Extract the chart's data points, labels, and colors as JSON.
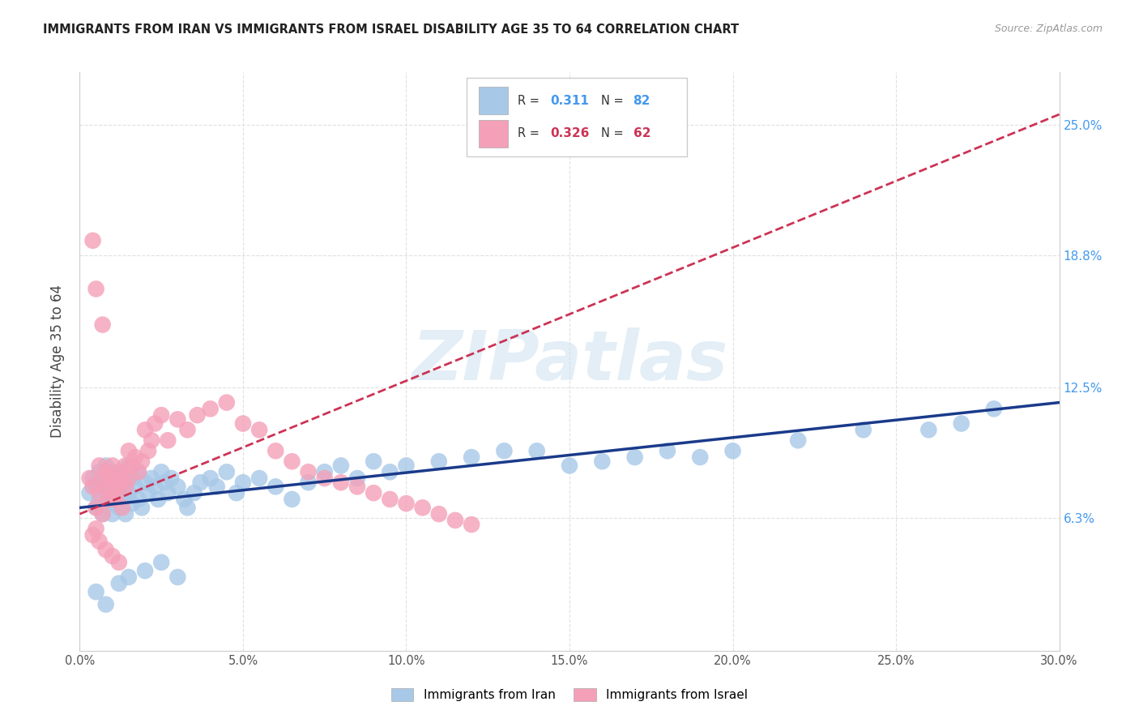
{
  "title": "IMMIGRANTS FROM IRAN VS IMMIGRANTS FROM ISRAEL DISABILITY AGE 35 TO 64 CORRELATION CHART",
  "source": "Source: ZipAtlas.com",
  "ylabel": "Disability Age 35 to 64",
  "ytick_labels": [
    "6.3%",
    "12.5%",
    "18.8%",
    "25.0%"
  ],
  "ytick_values": [
    0.063,
    0.125,
    0.188,
    0.25
  ],
  "xlim": [
    0.0,
    0.3
  ],
  "ylim": [
    0.0,
    0.275
  ],
  "iran_R": "0.311",
  "iran_N": "82",
  "israel_R": "0.326",
  "israel_N": "62",
  "iran_color": "#a8c8e8",
  "israel_color": "#f4a0b8",
  "iran_line_color": "#1a3a8a",
  "israel_line_color": "#cc3355",
  "israel_line_style": "--",
  "iran_line_style": "-",
  "background_color": "#ffffff",
  "grid_color": "#e0e0e0",
  "watermark": "ZIPatlas",
  "legend_iran": "Immigrants from Iran",
  "legend_israel": "Immigrants from Israel",
  "iran_x": [
    0.003,
    0.004,
    0.005,
    0.005,
    0.006,
    0.006,
    0.007,
    0.007,
    0.008,
    0.008,
    0.009,
    0.009,
    0.01,
    0.01,
    0.01,
    0.011,
    0.011,
    0.012,
    0.012,
    0.013,
    0.013,
    0.014,
    0.014,
    0.015,
    0.015,
    0.016,
    0.016,
    0.017,
    0.018,
    0.018,
    0.019,
    0.02,
    0.021,
    0.022,
    0.023,
    0.024,
    0.025,
    0.026,
    0.027,
    0.028,
    0.03,
    0.032,
    0.033,
    0.035,
    0.037,
    0.04,
    0.042,
    0.045,
    0.048,
    0.05,
    0.055,
    0.06,
    0.065,
    0.07,
    0.075,
    0.08,
    0.085,
    0.09,
    0.095,
    0.1,
    0.11,
    0.12,
    0.13,
    0.14,
    0.15,
    0.16,
    0.17,
    0.18,
    0.19,
    0.2,
    0.22,
    0.24,
    0.26,
    0.27,
    0.28,
    0.005,
    0.008,
    0.012,
    0.015,
    0.02,
    0.025,
    0.03
  ],
  "iran_y": [
    0.075,
    0.082,
    0.068,
    0.078,
    0.085,
    0.072,
    0.08,
    0.065,
    0.075,
    0.088,
    0.07,
    0.078,
    0.085,
    0.072,
    0.065,
    0.08,
    0.075,
    0.082,
    0.068,
    0.078,
    0.072,
    0.08,
    0.065,
    0.088,
    0.075,
    0.082,
    0.07,
    0.078,
    0.072,
    0.085,
    0.068,
    0.08,
    0.075,
    0.082,
    0.078,
    0.072,
    0.085,
    0.08,
    0.075,
    0.082,
    0.078,
    0.072,
    0.068,
    0.075,
    0.08,
    0.082,
    0.078,
    0.085,
    0.075,
    0.08,
    0.082,
    0.078,
    0.072,
    0.08,
    0.085,
    0.088,
    0.082,
    0.09,
    0.085,
    0.088,
    0.09,
    0.092,
    0.095,
    0.095,
    0.088,
    0.09,
    0.092,
    0.095,
    0.092,
    0.095,
    0.1,
    0.105,
    0.105,
    0.108,
    0.115,
    0.028,
    0.022,
    0.032,
    0.035,
    0.038,
    0.042,
    0.035
  ],
  "israel_x": [
    0.003,
    0.004,
    0.004,
    0.005,
    0.005,
    0.005,
    0.006,
    0.006,
    0.007,
    0.007,
    0.007,
    0.008,
    0.008,
    0.009,
    0.009,
    0.01,
    0.01,
    0.011,
    0.011,
    0.012,
    0.012,
    0.013,
    0.013,
    0.014,
    0.014,
    0.015,
    0.015,
    0.016,
    0.017,
    0.018,
    0.019,
    0.02,
    0.021,
    0.022,
    0.023,
    0.025,
    0.027,
    0.03,
    0.033,
    0.036,
    0.04,
    0.045,
    0.05,
    0.055,
    0.06,
    0.065,
    0.07,
    0.075,
    0.08,
    0.085,
    0.09,
    0.095,
    0.1,
    0.105,
    0.11,
    0.115,
    0.12,
    0.004,
    0.006,
    0.008,
    0.01,
    0.012
  ],
  "israel_y": [
    0.082,
    0.078,
    0.195,
    0.172,
    0.068,
    0.058,
    0.088,
    0.075,
    0.155,
    0.082,
    0.065,
    0.078,
    0.085,
    0.082,
    0.072,
    0.088,
    0.075,
    0.08,
    0.072,
    0.085,
    0.078,
    0.082,
    0.068,
    0.088,
    0.078,
    0.095,
    0.082,
    0.088,
    0.092,
    0.085,
    0.09,
    0.105,
    0.095,
    0.1,
    0.108,
    0.112,
    0.1,
    0.11,
    0.105,
    0.112,
    0.115,
    0.118,
    0.108,
    0.105,
    0.095,
    0.09,
    0.085,
    0.082,
    0.08,
    0.078,
    0.075,
    0.072,
    0.07,
    0.068,
    0.065,
    0.062,
    0.06,
    0.055,
    0.052,
    0.048,
    0.045,
    0.042
  ],
  "iran_trend": [
    0.068,
    0.118
  ],
  "israel_trend_x": [
    0.0,
    0.3
  ],
  "israel_trend_y": [
    0.065,
    0.255
  ]
}
